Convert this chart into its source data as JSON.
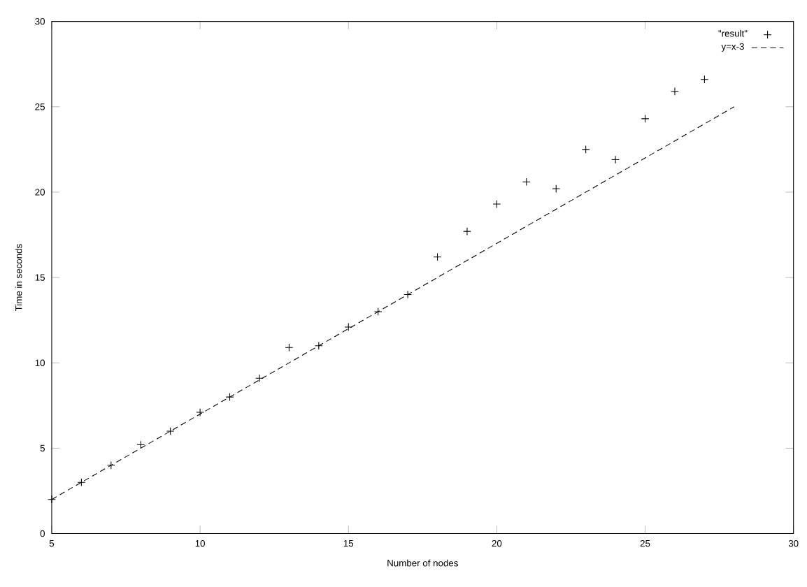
{
  "chart_data": {
    "type": "scatter",
    "xlabel": "Number of nodes",
    "ylabel": "Time in seconds",
    "xlim": [
      5,
      30
    ],
    "ylim": [
      0,
      30
    ],
    "xticks": [
      5,
      10,
      15,
      20,
      25,
      30
    ],
    "yticks": [
      0,
      5,
      10,
      15,
      20,
      25,
      30
    ],
    "legend": "top right",
    "grid": false,
    "series": [
      {
        "name": "\"result\"",
        "marker": "cross",
        "color": "#000000",
        "x": [
          5,
          6,
          7,
          8,
          9,
          10,
          11,
          12,
          13,
          14,
          15,
          16,
          17,
          18,
          19,
          20,
          21,
          22,
          23,
          24,
          25,
          26,
          27
        ],
        "values": [
          2,
          3,
          4,
          5.2,
          6,
          7.1,
          8,
          9.1,
          10.9,
          11,
          12.1,
          13,
          14,
          16.2,
          17.7,
          19.3,
          20.6,
          20.2,
          22.5,
          21.9,
          24.3,
          25.9,
          26.6
        ]
      },
      {
        "name": "y=x-3",
        "type": "line",
        "line_style": "dashed",
        "color": "#000000",
        "x": [
          5,
          28
        ],
        "values": [
          2,
          25
        ]
      }
    ]
  }
}
